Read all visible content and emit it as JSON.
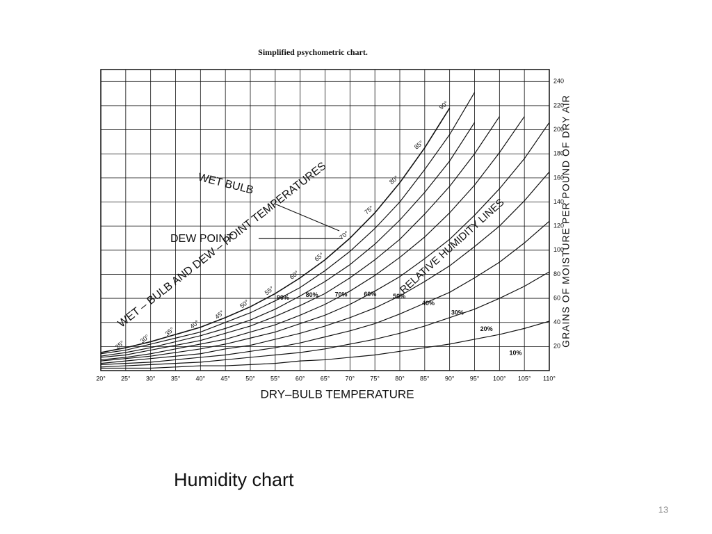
{
  "chart_data": {
    "type": "line",
    "title": "Simplified psychometric chart.",
    "xlabel": "DRY–BULB TEMPERATURE",
    "ylabel": "GRAINS OF MOISTURE PER POUND OF DRY AIR",
    "annotations": [
      "WET BULB",
      "DEW POINT",
      "WET – BULB AND DEW – POINT TEMPERATURES",
      "RELATIVE HUMIDITY LINES"
    ],
    "x": [
      20,
      25,
      30,
      35,
      40,
      45,
      50,
      55,
      60,
      65,
      70,
      75,
      80,
      85,
      90,
      95,
      100,
      105,
      110
    ],
    "saturation": [
      15,
      19,
      24,
      30,
      36,
      44,
      53,
      64,
      77,
      92,
      110,
      131,
      156,
      185,
      218,
      null,
      null,
      null,
      null
    ],
    "series": [
      {
        "name": "90%",
        "color": "#111",
        "values": [
          14,
          17,
          22,
          27,
          32,
          40,
          48,
          58,
          69,
          83,
          99,
          118,
          140,
          167,
          196,
          231,
          null,
          null,
          null
        ]
      },
      {
        "name": "80%",
        "color": "#111",
        "values": [
          12,
          15,
          19,
          24,
          29,
          35,
          42,
          51,
          62,
          74,
          88,
          105,
          125,
          148,
          174,
          206,
          null,
          null,
          null
        ]
      },
      {
        "name": "70%",
        "color": "#111",
        "values": [
          11,
          13,
          17,
          21,
          25,
          31,
          37,
          45,
          54,
          64,
          77,
          92,
          109,
          130,
          153,
          180,
          211,
          null,
          null
        ]
      },
      {
        "name": "60%",
        "color": "#111",
        "values": [
          9,
          11,
          14,
          18,
          22,
          26,
          32,
          38,
          46,
          55,
          66,
          79,
          94,
          111,
          131,
          154,
          181,
          211,
          null
        ]
      },
      {
        "name": "50%",
        "color": "#111",
        "values": [
          8,
          10,
          12,
          15,
          18,
          22,
          27,
          32,
          39,
          46,
          55,
          66,
          78,
          93,
          109,
          129,
          151,
          176,
          206
        ]
      },
      {
        "name": "40%",
        "color": "#111",
        "values": [
          6,
          8,
          10,
          12,
          14,
          18,
          21,
          26,
          31,
          37,
          44,
          52,
          62,
          74,
          87,
          103,
          120,
          141,
          165
        ]
      },
      {
        "name": "30%",
        "color": "#111",
        "values": [
          5,
          6,
          7,
          9,
          11,
          13,
          16,
          19,
          23,
          28,
          33,
          39,
          47,
          56,
          65,
          77,
          90,
          106,
          124
        ]
      },
      {
        "name": "20%",
        "color": "#111",
        "values": [
          3,
          4,
          5,
          6,
          7,
          9,
          11,
          13,
          15,
          18,
          22,
          26,
          31,
          37,
          44,
          51,
          60,
          70,
          82
        ]
      },
      {
        "name": "10%",
        "color": "#111",
        "values": [
          2,
          2,
          2,
          3,
          4,
          4,
          5,
          6,
          8,
          9,
          11,
          13,
          16,
          19,
          22,
          26,
          30,
          35,
          41
        ]
      }
    ],
    "wet_bulb_labels": [
      {
        "value": 25,
        "label": "25°"
      },
      {
        "value": 30,
        "label": "30°"
      },
      {
        "value": 35,
        "label": "35°"
      },
      {
        "value": 40,
        "label": "40°"
      },
      {
        "value": 45,
        "label": "45°"
      },
      {
        "value": 50,
        "label": "50°"
      },
      {
        "value": 55,
        "label": "55°"
      },
      {
        "value": 60,
        "label": "60°"
      },
      {
        "value": 65,
        "label": "65°"
      },
      {
        "value": 70,
        "label": "70°"
      },
      {
        "value": 75,
        "label": "75°"
      },
      {
        "value": 80,
        "label": "80°"
      },
      {
        "value": 85,
        "label": "85°"
      },
      {
        "value": 90,
        "label": "90°"
      }
    ],
    "xlim": [
      20,
      110
    ],
    "xticks": [
      {
        "value": 20,
        "label": "20°"
      },
      {
        "value": 25,
        "label": "25°"
      },
      {
        "value": 30,
        "label": "30°"
      },
      {
        "value": 35,
        "label": "35°"
      },
      {
        "value": 40,
        "label": "40°"
      },
      {
        "value": 45,
        "label": "45°"
      },
      {
        "value": 50,
        "label": "50°"
      },
      {
        "value": 55,
        "label": "55°"
      },
      {
        "value": 60,
        "label": "60°"
      },
      {
        "value": 65,
        "label": "65°"
      },
      {
        "value": 70,
        "label": "70°"
      },
      {
        "value": 75,
        "label": "75°"
      },
      {
        "value": 80,
        "label": "80°"
      },
      {
        "value": 85,
        "label": "85°"
      },
      {
        "value": 90,
        "label": "90°"
      },
      {
        "value": 95,
        "label": "95°"
      },
      {
        "value": 100,
        "label": "100°"
      },
      {
        "value": 105,
        "label": "105°"
      },
      {
        "value": 110,
        "label": "110°"
      }
    ],
    "ylim": [
      0,
      250
    ],
    "yticks": [
      20,
      40,
      60,
      80,
      100,
      120,
      140,
      160,
      180,
      200,
      220,
      240
    ],
    "grid": true
  },
  "slide": {
    "caption": "Humidity chart",
    "page_number": 13
  }
}
